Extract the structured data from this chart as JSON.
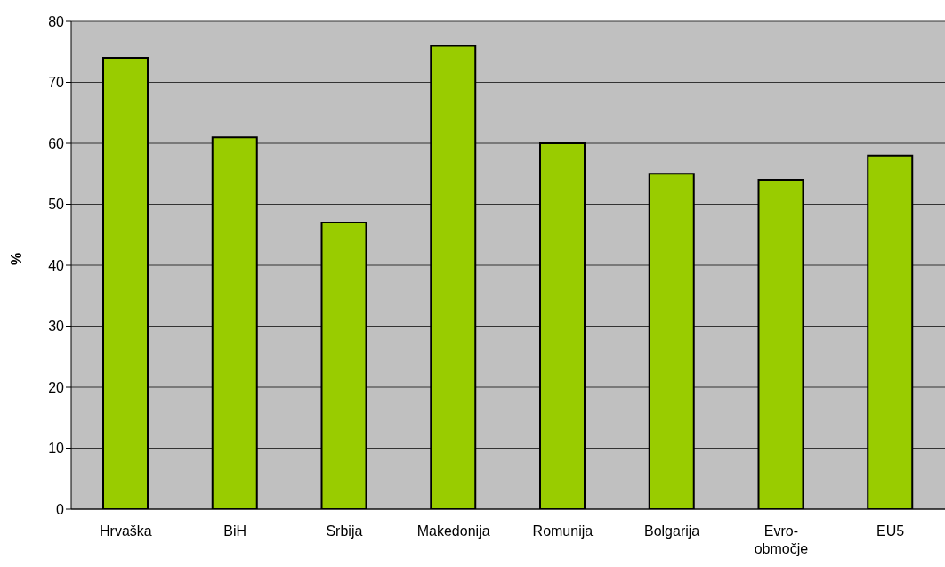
{
  "chart_data": {
    "type": "bar",
    "ylabel": "%",
    "categories": [
      "Hrvaška",
      "BiH",
      "Srbija",
      "Makedonija",
      "Romunija",
      "Bolgarija",
      "Evro-območje",
      "EU5"
    ],
    "values": [
      74,
      61,
      47,
      76,
      60,
      55,
      54,
      58
    ],
    "color": "#99cc00",
    "ylim": [
      0,
      80
    ],
    "yticks": [
      0,
      10,
      20,
      30,
      40,
      50,
      60,
      70,
      80
    ],
    "grid": "y"
  }
}
